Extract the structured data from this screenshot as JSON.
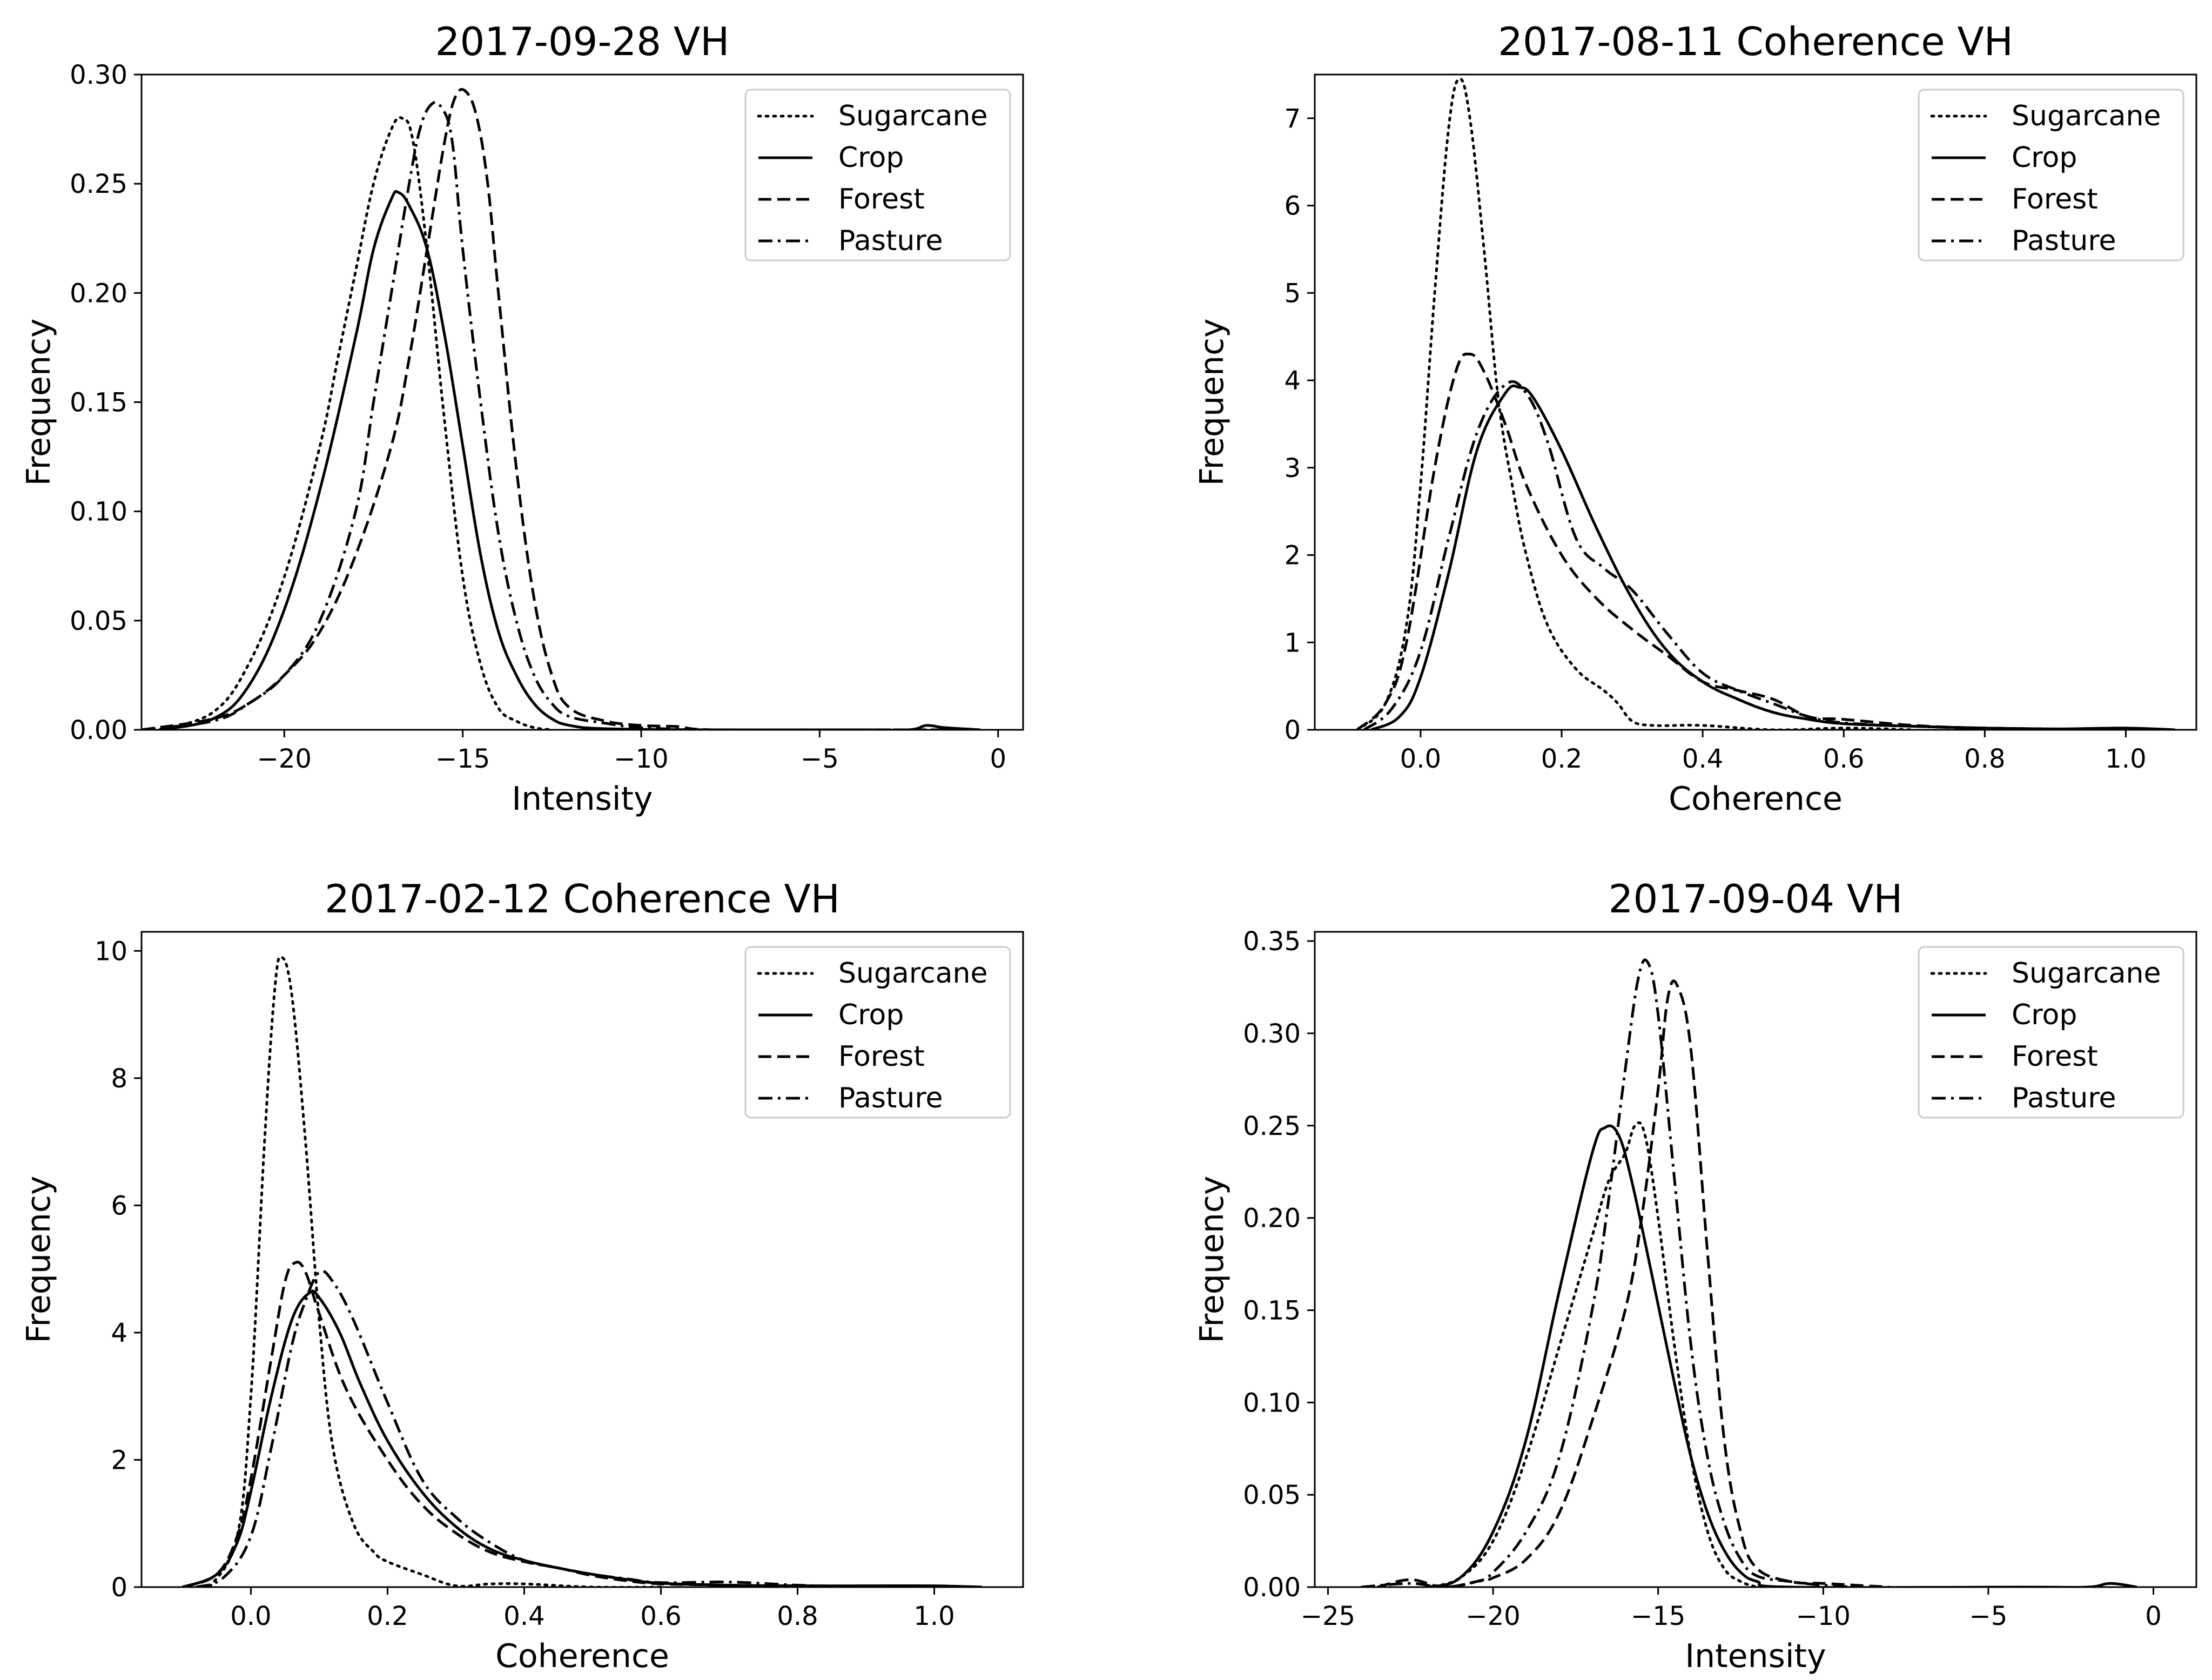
{
  "figure": {
    "line_color": "#000000",
    "background": "#ffffff"
  },
  "chart_data": [
    {
      "type": "line",
      "title": "2017-09-28 VH",
      "xlabel": "Intensity",
      "ylabel": "Frequency",
      "xlim": [
        -24.0,
        0.7
      ],
      "ylim": [
        0,
        0.3
      ],
      "xticks": [
        -20,
        -15,
        -10,
        -5,
        0
      ],
      "xtick_labels": [
        "−20",
        "−15",
        "−10",
        "−5",
        "0"
      ],
      "yticks": [
        0,
        0.05,
        0.1,
        0.15,
        0.2,
        0.25,
        0.3
      ],
      "ytick_labels": [
        "0.00",
        "0.05",
        "0.10",
        "0.15",
        "0.20",
        "0.25",
        "0.30"
      ],
      "legend_position": "top-right",
      "grid": false,
      "series": [
        {
          "name": "Sugarcane",
          "style": "dotted",
          "x": [
            -23.5,
            -22.0,
            -21.0,
            -20.0,
            -19.0,
            -18.5,
            -18.0,
            -17.5,
            -17.0,
            -16.7,
            -16.4,
            -16.0,
            -15.5,
            -15.0,
            -14.5,
            -14.0,
            -13.5,
            -13.0,
            -12.5
          ],
          "y": [
            0.0,
            0.008,
            0.03,
            0.07,
            0.13,
            0.17,
            0.21,
            0.25,
            0.275,
            0.28,
            0.27,
            0.22,
            0.14,
            0.07,
            0.03,
            0.01,
            0.004,
            0.001,
            0.0
          ]
        },
        {
          "name": "Crop",
          "style": "solid",
          "x": [
            -23.5,
            -22.0,
            -21.0,
            -20.0,
            -19.0,
            -18.0,
            -17.5,
            -17.0,
            -16.8,
            -16.5,
            -16.0,
            -15.5,
            -15.0,
            -14.5,
            -14.0,
            -13.5,
            -13.0,
            -12.5,
            -12.0,
            -11.0,
            -8.0,
            -4.0,
            -2.5,
            -2.0,
            -1.5,
            -0.5
          ],
          "y": [
            0.0,
            0.005,
            0.02,
            0.055,
            0.11,
            0.18,
            0.22,
            0.243,
            0.246,
            0.24,
            0.22,
            0.18,
            0.13,
            0.08,
            0.045,
            0.025,
            0.012,
            0.005,
            0.002,
            0.0005,
            0.0,
            0.0,
            0.0,
            0.002,
            0.001,
            0.0
          ]
        },
        {
          "name": "Forest",
          "style": "dashed",
          "x": [
            -24.0,
            -22.0,
            -21.0,
            -20.0,
            -19.0,
            -18.0,
            -17.0,
            -16.5,
            -16.0,
            -15.5,
            -15.2,
            -14.9,
            -14.6,
            -14.3,
            -14.0,
            -13.5,
            -13.0,
            -12.5,
            -12.0,
            -11.0,
            -10.0,
            -9.0,
            -8.0,
            -4.0,
            -0.5
          ],
          "y": [
            0.0,
            0.005,
            0.012,
            0.025,
            0.045,
            0.08,
            0.13,
            0.17,
            0.22,
            0.27,
            0.29,
            0.292,
            0.28,
            0.25,
            0.2,
            0.12,
            0.06,
            0.025,
            0.01,
            0.004,
            0.002,
            0.0015,
            0.0,
            0.0,
            0.0
          ]
        },
        {
          "name": "Pasture",
          "style": "dashdot",
          "x": [
            -24.0,
            -22.0,
            -21.0,
            -20.0,
            -19.0,
            -18.0,
            -17.5,
            -17.0,
            -16.5,
            -16.2,
            -15.9,
            -15.6,
            -15.3,
            -15.0,
            -14.5,
            -14.0,
            -13.5,
            -13.0,
            -12.5,
            -12.0,
            -11.0,
            -10.0,
            -8.0,
            -4.0,
            -0.5
          ],
          "y": [
            0.0,
            0.004,
            0.012,
            0.025,
            0.05,
            0.1,
            0.15,
            0.2,
            0.25,
            0.275,
            0.286,
            0.285,
            0.27,
            0.22,
            0.15,
            0.09,
            0.05,
            0.025,
            0.012,
            0.006,
            0.003,
            0.001,
            0.0,
            0.0,
            0.0
          ]
        }
      ]
    },
    {
      "type": "line",
      "title": "2017-08-11 Coherence VH",
      "xlabel": "Coherence",
      "ylabel": "Frequency",
      "xlim": [
        -0.15,
        1.1
      ],
      "ylim": [
        0,
        7.5
      ],
      "xticks": [
        0.0,
        0.2,
        0.4,
        0.6,
        0.8,
        1.0
      ],
      "xtick_labels": [
        "0.0",
        "0.2",
        "0.4",
        "0.6",
        "0.8",
        "1.0"
      ],
      "yticks": [
        0,
        1,
        2,
        3,
        4,
        5,
        6,
        7
      ],
      "ytick_labels": [
        "0",
        "1",
        "2",
        "3",
        "4",
        "5",
        "6",
        "7"
      ],
      "legend_position": "top-right",
      "grid": false,
      "series": [
        {
          "name": "Sugarcane",
          "style": "dotted",
          "x": [
            -0.09,
            -0.05,
            -0.02,
            0.0,
            0.02,
            0.04,
            0.055,
            0.07,
            0.09,
            0.11,
            0.13,
            0.15,
            0.18,
            0.22,
            0.26,
            0.28,
            0.3,
            0.33,
            0.4,
            0.5,
            0.6,
            0.7
          ],
          "y": [
            0.0,
            0.3,
            1.2,
            2.8,
            5.0,
            6.9,
            7.45,
            7.0,
            5.5,
            3.8,
            2.8,
            2.0,
            1.2,
            0.7,
            0.45,
            0.3,
            0.1,
            0.05,
            0.05,
            0.0,
            0.02,
            0.0
          ]
        },
        {
          "name": "Crop",
          "style": "solid",
          "x": [
            -0.07,
            -0.03,
            0.0,
            0.04,
            0.08,
            0.12,
            0.14,
            0.16,
            0.2,
            0.25,
            0.3,
            0.35,
            0.4,
            0.45,
            0.5,
            0.55,
            0.6,
            0.7,
            0.8,
            0.9,
            1.0,
            1.07
          ],
          "y": [
            0.0,
            0.15,
            0.6,
            1.8,
            3.2,
            3.85,
            3.92,
            3.8,
            3.2,
            2.3,
            1.5,
            0.9,
            0.55,
            0.35,
            0.2,
            0.12,
            0.07,
            0.04,
            0.02,
            0.01,
            0.02,
            0.0
          ]
        },
        {
          "name": "Forest",
          "style": "dashed",
          "x": [
            -0.09,
            -0.05,
            -0.02,
            0.02,
            0.05,
            0.07,
            0.09,
            0.12,
            0.15,
            0.2,
            0.25,
            0.3,
            0.35,
            0.4,
            0.45,
            0.5,
            0.55,
            0.6,
            0.7,
            0.8,
            1.0
          ],
          "y": [
            0.0,
            0.3,
            1.0,
            3.0,
            4.1,
            4.3,
            4.1,
            3.5,
            2.8,
            2.0,
            1.5,
            1.15,
            0.85,
            0.55,
            0.45,
            0.35,
            0.15,
            0.12,
            0.05,
            0.02,
            0.0
          ]
        },
        {
          "name": "Pasture",
          "style": "dashdot",
          "x": [
            -0.08,
            -0.04,
            0.0,
            0.04,
            0.08,
            0.12,
            0.15,
            0.18,
            0.22,
            0.26,
            0.3,
            0.35,
            0.4,
            0.45,
            0.5,
            0.55,
            0.6,
            0.7,
            0.8,
            1.0
          ],
          "y": [
            0.0,
            0.25,
            0.9,
            2.2,
            3.4,
            3.95,
            3.85,
            3.3,
            2.2,
            1.85,
            1.6,
            1.1,
            0.65,
            0.45,
            0.3,
            0.15,
            0.08,
            0.04,
            0.02,
            0.0
          ]
        }
      ]
    },
    {
      "type": "line",
      "title": "2017-02-12 Coherence VH",
      "xlabel": "Coherence",
      "ylabel": "Frequency",
      "xlim": [
        -0.16,
        1.13
      ],
      "ylim": [
        0,
        10.3
      ],
      "xticks": [
        0.0,
        0.2,
        0.4,
        0.6,
        0.8,
        1.0
      ],
      "xtick_labels": [
        "0.0",
        "0.2",
        "0.4",
        "0.6",
        "0.8",
        "1.0"
      ],
      "yticks": [
        0,
        2,
        4,
        6,
        8,
        10
      ],
      "ytick_labels": [
        "0",
        "2",
        "4",
        "6",
        "8",
        "10"
      ],
      "legend_position": "top-right",
      "grid": false,
      "series": [
        {
          "name": "Sugarcane",
          "style": "dotted",
          "x": [
            -0.06,
            -0.02,
            0.0,
            0.02,
            0.035,
            0.045,
            0.06,
            0.08,
            0.1,
            0.12,
            0.15,
            0.18,
            0.2,
            0.25,
            0.3,
            0.35,
            0.4,
            0.5,
            0.6
          ],
          "y": [
            0.0,
            0.8,
            3.0,
            7.0,
            9.4,
            9.9,
            9.3,
            7.0,
            4.2,
            2.2,
            1.0,
            0.55,
            0.4,
            0.2,
            0.02,
            0.05,
            0.05,
            0.0,
            0.0
          ]
        },
        {
          "name": "Crop",
          "style": "solid",
          "x": [
            -0.1,
            -0.05,
            -0.02,
            0.0,
            0.03,
            0.06,
            0.085,
            0.1,
            0.13,
            0.16,
            0.2,
            0.25,
            0.3,
            0.35,
            0.4,
            0.45,
            0.5,
            0.55,
            0.6,
            0.7,
            0.8,
            0.9,
            1.0,
            1.07
          ],
          "y": [
            0.0,
            0.2,
            0.7,
            1.5,
            3.0,
            4.2,
            4.62,
            4.55,
            4.0,
            3.2,
            2.3,
            1.5,
            0.95,
            0.6,
            0.42,
            0.3,
            0.2,
            0.12,
            0.06,
            0.03,
            0.02,
            0.02,
            0.02,
            0.0
          ]
        },
        {
          "name": "Forest",
          "style": "dashed",
          "x": [
            -0.1,
            -0.05,
            -0.02,
            0.0,
            0.03,
            0.05,
            0.065,
            0.08,
            0.1,
            0.14,
            0.2,
            0.25,
            0.3,
            0.35,
            0.4,
            0.45,
            0.5,
            0.55,
            0.6,
            0.7,
            0.8
          ],
          "y": [
            0.0,
            0.2,
            0.8,
            1.7,
            3.6,
            4.8,
            5.1,
            4.95,
            4.3,
            3.1,
            2.0,
            1.3,
            0.85,
            0.55,
            0.4,
            0.3,
            0.18,
            0.1,
            0.05,
            0.03,
            0.0
          ]
        },
        {
          "name": "Pasture",
          "style": "dashdot",
          "x": [
            -0.08,
            -0.04,
            0.0,
            0.03,
            0.06,
            0.08,
            0.1,
            0.12,
            0.15,
            0.2,
            0.25,
            0.3,
            0.35,
            0.4,
            0.45,
            0.5,
            0.55,
            0.6,
            0.7,
            0.8,
            0.9
          ],
          "y": [
            0.0,
            0.15,
            0.8,
            2.2,
            3.8,
            4.5,
            4.95,
            4.8,
            4.2,
            2.9,
            1.7,
            1.1,
            0.7,
            0.42,
            0.3,
            0.2,
            0.13,
            0.07,
            0.08,
            0.03,
            0.0
          ]
        }
      ]
    },
    {
      "type": "line",
      "title": "2017-09-04 VH",
      "xlabel": "Intensity",
      "ylabel": "Frequency",
      "xlim": [
        -25.4,
        1.3
      ],
      "ylim": [
        0,
        0.355
      ],
      "xticks": [
        -25,
        -20,
        -15,
        -10,
        -5,
        0
      ],
      "xtick_labels": [
        "−25",
        "−20",
        "−15",
        "−10",
        "−5",
        "0"
      ],
      "yticks": [
        0,
        0.05,
        0.1,
        0.15,
        0.2,
        0.25,
        0.3,
        0.35
      ],
      "ytick_labels": [
        "0.00",
        "0.05",
        "0.10",
        "0.15",
        "0.20",
        "0.25",
        "0.30",
        "0.35"
      ],
      "legend_position": "top-right",
      "grid": false,
      "series": [
        {
          "name": "Sugarcane",
          "style": "dotted",
          "x": [
            -22.0,
            -21.0,
            -20.0,
            -19.0,
            -18.0,
            -17.5,
            -17.0,
            -16.5,
            -16.0,
            -15.7,
            -15.4,
            -15.0,
            -14.5,
            -14.0,
            -13.5,
            -13.0,
            -12.5,
            -12.0
          ],
          "y": [
            0.0,
            0.005,
            0.025,
            0.07,
            0.13,
            0.16,
            0.19,
            0.22,
            0.235,
            0.25,
            0.245,
            0.2,
            0.13,
            0.07,
            0.03,
            0.01,
            0.003,
            0.0
          ]
        },
        {
          "name": "Crop",
          "style": "solid",
          "x": [
            -22.0,
            -21.0,
            -20.0,
            -19.0,
            -18.0,
            -17.0,
            -16.6,
            -16.2,
            -15.8,
            -15.2,
            -14.5,
            -14.0,
            -13.5,
            -13.0,
            -12.5,
            -12.0,
            -11.0,
            -4.0,
            -2.0,
            -1.3,
            -0.5
          ],
          "y": [
            0.0,
            0.005,
            0.03,
            0.08,
            0.16,
            0.235,
            0.249,
            0.245,
            0.22,
            0.17,
            0.11,
            0.07,
            0.04,
            0.02,
            0.008,
            0.003,
            0.0,
            0.0,
            0.0,
            0.002,
            0.0
          ]
        },
        {
          "name": "Forest",
          "style": "dashed",
          "x": [
            -23.5,
            -22.5,
            -21.5,
            -20.5,
            -20.0,
            -19.0,
            -18.0,
            -17.0,
            -16.0,
            -15.5,
            -15.0,
            -14.7,
            -14.4,
            -14.0,
            -13.5,
            -13.0,
            -12.5,
            -12.0,
            -11.0,
            -10.0,
            -9.0,
            -8.0
          ],
          "y": [
            0.0,
            0.004,
            0.0,
            0.003,
            0.005,
            0.015,
            0.04,
            0.09,
            0.15,
            0.2,
            0.27,
            0.32,
            0.325,
            0.29,
            0.18,
            0.08,
            0.03,
            0.01,
            0.003,
            0.002,
            0.001,
            0.0
          ]
        },
        {
          "name": "Pasture",
          "style": "dashdot",
          "x": [
            -24.0,
            -22.5,
            -21.5,
            -20.5,
            -20.0,
            -19.0,
            -18.0,
            -17.0,
            -16.5,
            -16.0,
            -15.6,
            -15.3,
            -15.0,
            -14.5,
            -14.0,
            -13.5,
            -13.0,
            -12.5,
            -12.0,
            -11.0,
            -10.0,
            -9.0
          ],
          "y": [
            0.0,
            0.002,
            0.0,
            0.003,
            0.008,
            0.03,
            0.07,
            0.15,
            0.21,
            0.28,
            0.33,
            0.338,
            0.31,
            0.22,
            0.13,
            0.07,
            0.035,
            0.015,
            0.006,
            0.003,
            0.001,
            0.0
          ]
        }
      ]
    }
  ]
}
